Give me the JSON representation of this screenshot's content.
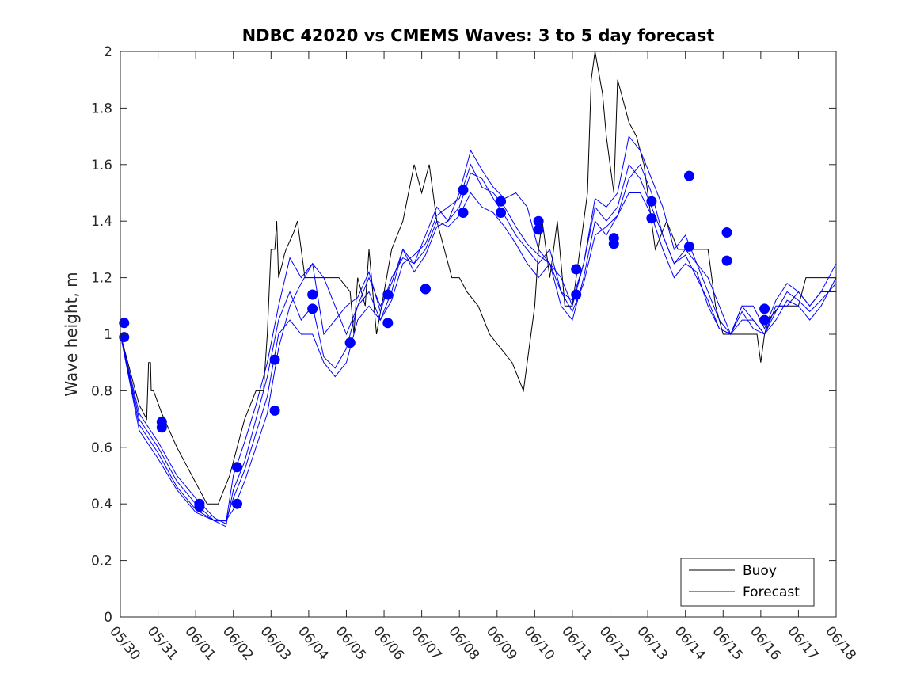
{
  "chart_data": {
    "type": "line",
    "title": "NDBC 42020 vs CMEMS Waves: 3 to 5 day forecast",
    "xlabel": "",
    "ylabel": "Wave height, m",
    "ylim": [
      0,
      2
    ],
    "yticks": [
      0,
      0.2,
      0.4,
      0.6,
      0.8,
      1,
      1.2,
      1.4,
      1.6,
      1.8,
      2
    ],
    "xlim": [
      0,
      19
    ],
    "xtick_labels": [
      "05/30",
      "05/31",
      "06/01",
      "06/02",
      "06/03",
      "06/04",
      "06/05",
      "06/06",
      "06/07",
      "06/08",
      "06/09",
      "06/10",
      "06/11",
      "06/12",
      "06/13",
      "06/14",
      "06/15",
      "06/16",
      "06/17",
      "06/18"
    ],
    "grid": false,
    "legend_position": "bottom-right",
    "colors": {
      "buoy": "#000000",
      "forecast": "#0000ff"
    },
    "series": [
      {
        "name": "Buoy",
        "style": "line",
        "x": [
          0,
          0.3,
          0.5,
          0.7,
          0.75,
          0.8,
          0.82,
          0.84,
          0.88,
          1.1,
          1.5,
          1.9,
          2.3,
          2.6,
          2.9,
          3.1,
          3.3,
          3.6,
          3.8,
          3.9,
          4.0,
          4.1,
          4.15,
          4.2,
          4.3,
          4.35,
          4.4,
          4.5,
          4.6,
          4.7,
          4.8,
          4.9,
          5.0,
          5.2,
          5.5,
          5.8,
          6.1,
          6.2,
          6.3,
          6.5,
          6.6,
          6.8,
          7.0,
          7.2,
          7.5,
          7.8,
          8.0,
          8.2,
          8.4,
          8.6,
          8.8,
          9.0,
          9.2,
          9.5,
          9.8,
          10.1,
          10.4,
          10.7,
          10.9,
          11.0,
          11.1,
          11.2,
          11.4,
          11.5,
          11.6,
          11.8,
          12.0,
          12.2,
          12.4,
          12.5,
          12.6,
          12.8,
          12.9,
          13.0,
          13.1,
          13.2,
          13.3,
          13.4,
          13.5,
          13.7,
          13.9,
          14.2,
          14.5,
          14.8,
          15.0,
          15.2,
          15.4,
          15.6,
          15.8,
          16.0,
          16.1,
          16.3,
          16.6,
          16.9,
          17.0,
          17.1,
          17.2,
          17.5,
          17.8,
          18.0,
          18.2,
          18.5,
          18.8,
          19.0
        ],
        "y": [
          1.0,
          0.85,
          0.75,
          0.7,
          0.9,
          0.9,
          0.8,
          0.8,
          0.8,
          0.72,
          0.6,
          0.5,
          0.4,
          0.4,
          0.5,
          0.6,
          0.7,
          0.8,
          0.8,
          1.0,
          1.3,
          1.3,
          1.4,
          1.2,
          1.25,
          1.28,
          1.3,
          1.33,
          1.36,
          1.4,
          1.3,
          1.2,
          1.2,
          1.2,
          1.2,
          1.2,
          1.15,
          1.0,
          1.2,
          1.1,
          1.3,
          1.0,
          1.15,
          1.3,
          1.4,
          1.6,
          1.5,
          1.6,
          1.4,
          1.3,
          1.2,
          1.2,
          1.15,
          1.1,
          1.0,
          0.95,
          0.9,
          0.8,
          1.0,
          1.1,
          1.3,
          1.4,
          1.2,
          1.3,
          1.4,
          1.1,
          1.1,
          1.3,
          1.5,
          1.9,
          2.0,
          1.85,
          1.7,
          1.6,
          1.5,
          1.9,
          1.85,
          1.8,
          1.75,
          1.7,
          1.6,
          1.3,
          1.4,
          1.3,
          1.3,
          1.3,
          1.3,
          1.3,
          1.1,
          1.0,
          1.0,
          1.0,
          1.0,
          1.0,
          0.9,
          1.0,
          1.05,
          1.1,
          1.1,
          1.1,
          1.2,
          1.2,
          1.2,
          1.2
        ]
      },
      {
        "name": "Forecast",
        "style": "line",
        "x": [
          0,
          0.5,
          1.0,
          1.5,
          2.0,
          2.5,
          2.8,
          3.0,
          3.3,
          3.6,
          3.9,
          4.2,
          4.5,
          4.8,
          5.1,
          5.4,
          5.7,
          6.0,
          6.3,
          6.6,
          6.9,
          7.2,
          7.5,
          7.8,
          8.1,
          8.4,
          8.7,
          9.0,
          9.3,
          9.6,
          9.9,
          10.2,
          10.5,
          10.8,
          11.1,
          11.4,
          11.7,
          12.0,
          12.3,
          12.6,
          12.9,
          13.2,
          13.5,
          13.8,
          14.1,
          14.4,
          14.7,
          15.0,
          15.3,
          15.6,
          15.9,
          16.2,
          16.5,
          16.8,
          17.1,
          17.4,
          17.7,
          18.0,
          18.3,
          18.6,
          19.0
        ],
        "y": [
          1.0,
          0.72,
          0.62,
          0.5,
          0.42,
          0.35,
          0.33,
          0.5,
          0.62,
          0.75,
          0.9,
          1.1,
          1.27,
          1.2,
          1.25,
          1.0,
          1.05,
          1.1,
          1.13,
          1.22,
          1.08,
          1.2,
          1.27,
          1.25,
          1.35,
          1.45,
          1.4,
          1.45,
          1.57,
          1.55,
          1.48,
          1.42,
          1.35,
          1.3,
          1.25,
          1.3,
          1.15,
          1.12,
          1.25,
          1.45,
          1.4,
          1.45,
          1.6,
          1.55,
          1.45,
          1.35,
          1.25,
          1.3,
          1.25,
          1.15,
          1.05,
          1.0,
          1.1,
          1.05,
          1.0,
          1.1,
          1.1,
          1.15,
          1.1,
          1.15,
          1.15
        ]
      },
      {
        "name": "",
        "style": "line",
        "x": [
          0,
          0.5,
          1.0,
          1.5,
          2.0,
          2.5,
          2.8,
          3.0,
          3.3,
          3.6,
          3.9,
          4.2,
          4.5,
          4.8,
          5.1,
          5.4,
          5.7,
          6.0,
          6.3,
          6.6,
          6.9,
          7.2,
          7.5,
          7.8,
          8.1,
          8.4,
          8.7,
          9.0,
          9.3,
          9.6,
          9.9,
          10.2,
          10.5,
          10.8,
          11.1,
          11.4,
          11.7,
          12.0,
          12.3,
          12.6,
          12.9,
          13.2,
          13.5,
          13.8,
          14.1,
          14.4,
          14.7,
          15.0,
          15.3,
          15.6,
          15.9,
          16.2,
          16.5,
          16.8,
          17.1,
          17.4,
          17.7,
          18.0,
          18.3,
          18.6,
          19.0
        ],
        "y": [
          1.0,
          0.7,
          0.6,
          0.48,
          0.4,
          0.34,
          0.32,
          0.45,
          0.55,
          0.7,
          0.85,
          1.05,
          1.15,
          1.05,
          1.1,
          0.92,
          0.88,
          0.95,
          1.1,
          1.15,
          1.05,
          1.15,
          1.3,
          1.25,
          1.3,
          1.4,
          1.38,
          1.42,
          1.5,
          1.45,
          1.43,
          1.38,
          1.32,
          1.25,
          1.2,
          1.25,
          1.1,
          1.05,
          1.2,
          1.4,
          1.35,
          1.42,
          1.5,
          1.5,
          1.42,
          1.3,
          1.2,
          1.25,
          1.22,
          1.1,
          1.02,
          1.0,
          1.08,
          1.02,
          1.0,
          1.05,
          1.12,
          1.1,
          1.05,
          1.1,
          1.2
        ]
      },
      {
        "name": "",
        "style": "line",
        "x": [
          0,
          0.5,
          1.0,
          1.5,
          2.0,
          2.5,
          2.8,
          3.0,
          3.3,
          3.6,
          3.9,
          4.2,
          4.5,
          4.8,
          5.1,
          5.4,
          5.7,
          6.0,
          6.3,
          6.6,
          6.9,
          7.2,
          7.5,
          7.8,
          8.1,
          8.4,
          8.7,
          9.0,
          9.3,
          9.6,
          9.9,
          10.2,
          10.5,
          10.8,
          11.1,
          11.4,
          11.7,
          12.0,
          12.3,
          12.6,
          12.9,
          13.2,
          13.5,
          13.8,
          14.1,
          14.4,
          14.7,
          15.0,
          15.3,
          15.6,
          15.9,
          16.2,
          16.5,
          16.8,
          17.1,
          17.4,
          17.7,
          18.0,
          18.3,
          18.6,
          19.0
        ],
        "y": [
          1.0,
          0.68,
          0.58,
          0.46,
          0.38,
          0.34,
          0.34,
          0.42,
          0.52,
          0.65,
          0.78,
          1.0,
          1.05,
          1.0,
          1.0,
          0.9,
          0.85,
          0.9,
          1.05,
          1.1,
          1.05,
          1.12,
          1.25,
          1.28,
          1.32,
          1.42,
          1.45,
          1.48,
          1.6,
          1.52,
          1.5,
          1.45,
          1.38,
          1.32,
          1.28,
          1.25,
          1.15,
          1.08,
          1.18,
          1.35,
          1.38,
          1.42,
          1.55,
          1.6,
          1.5,
          1.35,
          1.25,
          1.28,
          1.2,
          1.12,
          1.02,
          1.0,
          1.05,
          1.05,
          1.0,
          1.08,
          1.15,
          1.12,
          1.08,
          1.12,
          1.18
        ]
      },
      {
        "name": "",
        "style": "line",
        "x": [
          0,
          0.5,
          1.0,
          1.5,
          2.0,
          2.5,
          2.8,
          3.0,
          3.3,
          3.6,
          3.9,
          4.2,
          4.5,
          4.8,
          5.1,
          5.4,
          5.7,
          6.0,
          6.3,
          6.6,
          6.9,
          7.2,
          7.5,
          7.8,
          8.1,
          8.4,
          8.7,
          9.0,
          9.3,
          9.6,
          9.9,
          10.2,
          10.5,
          10.8,
          11.1,
          11.4,
          11.7,
          12.0,
          12.3,
          12.6,
          12.9,
          13.2,
          13.5,
          13.8,
          14.1,
          14.4,
          14.7,
          15.0,
          15.3,
          15.6,
          15.9,
          16.2,
          16.5,
          16.8,
          17.1,
          17.4,
          17.7,
          18.0,
          18.3,
          18.6,
          19.0
        ],
        "y": [
          1.0,
          0.66,
          0.56,
          0.45,
          0.37,
          0.34,
          0.34,
          0.38,
          0.48,
          0.6,
          0.72,
          0.95,
          1.1,
          1.18,
          1.25,
          1.2,
          1.1,
          1.0,
          1.1,
          1.2,
          1.1,
          1.18,
          1.3,
          1.22,
          1.28,
          1.38,
          1.4,
          1.5,
          1.65,
          1.58,
          1.52,
          1.48,
          1.5,
          1.45,
          1.3,
          1.25,
          1.2,
          1.1,
          1.25,
          1.48,
          1.45,
          1.5,
          1.7,
          1.65,
          1.55,
          1.45,
          1.3,
          1.35,
          1.25,
          1.2,
          1.1,
          1.0,
          1.1,
          1.1,
          1.02,
          1.12,
          1.18,
          1.15,
          1.1,
          1.15,
          1.25
        ]
      },
      {
        "name": "",
        "style": "markers",
        "x": [
          0.1,
          0.1,
          1.1,
          1.1,
          2.1,
          2.1,
          3.1,
          3.1,
          4.1,
          4.1,
          5.1,
          5.1,
          6.1,
          6.1,
          7.1,
          7.1,
          8.1,
          8.1,
          9.1,
          9.1,
          10.1,
          10.1,
          11.1,
          11.1,
          12.1,
          12.1,
          13.1,
          13.1,
          14.1,
          14.1,
          15.1,
          15.1,
          16.1,
          16.1,
          17.1,
          17.1
        ],
        "y": [
          1.04,
          0.99,
          0.69,
          0.67,
          0.4,
          0.39,
          0.53,
          0.4,
          0.91,
          0.73,
          1.14,
          1.09,
          0.97,
          0.97,
          1.14,
          1.04,
          1.16,
          1.16,
          1.51,
          1.43,
          1.47,
          1.43,
          1.4,
          1.37,
          1.23,
          1.14,
          1.34,
          1.32,
          1.47,
          1.41,
          1.56,
          1.31,
          1.36,
          1.26,
          1.09,
          1.05
        ]
      }
    ]
  },
  "legend": {
    "items": [
      {
        "label": "Buoy",
        "color": "#000000"
      },
      {
        "label": "Forecast",
        "color": "#0000ff"
      }
    ]
  }
}
